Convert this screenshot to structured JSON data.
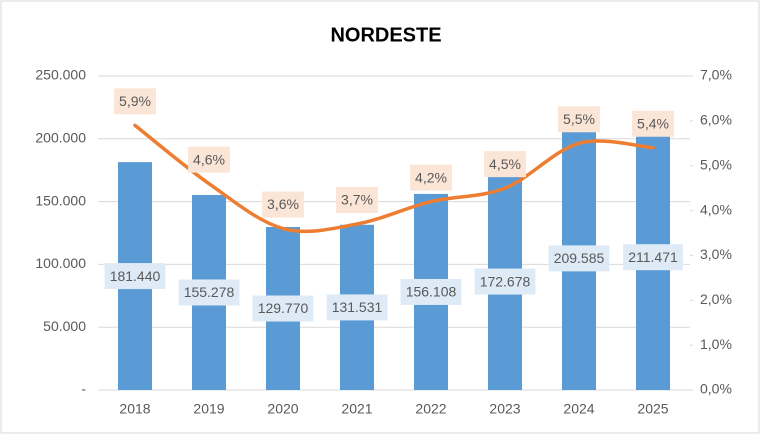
{
  "chart_data": {
    "type": "combo",
    "title": "NORDESTE",
    "categories": [
      "2018",
      "2019",
      "2020",
      "2021",
      "2022",
      "2023",
      "2024",
      "2025"
    ],
    "series": [
      {
        "type": "bar",
        "color": "#5b9bd5",
        "axis": "y",
        "values": [
          181440,
          155278,
          129770,
          131531,
          156108,
          172678,
          209585,
          211471
        ],
        "value_labels": [
          "181.440",
          "155.278",
          "129.770",
          "131.531",
          "156.108",
          "172.678",
          "209.585",
          "211.471"
        ]
      },
      {
        "type": "line",
        "color": "#ed7d31",
        "axis": "y2",
        "values": [
          5.9,
          4.6,
          3.6,
          3.7,
          4.2,
          4.5,
          5.5,
          5.4
        ],
        "value_labels": [
          "5,9%",
          "4,6%",
          "3,6%",
          "3,7%",
          "4,2%",
          "4,5%",
          "5,5%",
          "5,4%"
        ]
      }
    ],
    "ylim": [
      0,
      250000
    ],
    "yticks": [
      {
        "value": 0,
        "label": "-"
      },
      {
        "value": 50000,
        "label": "50.000"
      },
      {
        "value": 100000,
        "label": "100.000"
      },
      {
        "value": 150000,
        "label": "150.000"
      },
      {
        "value": 200000,
        "label": "200.000"
      },
      {
        "value": 250000,
        "label": "250.000"
      }
    ],
    "y2lim": [
      0,
      7
    ],
    "y2ticks": [
      {
        "value": 0,
        "label": "0,0%"
      },
      {
        "value": 1,
        "label": "1,0%"
      },
      {
        "value": 2,
        "label": "2,0%"
      },
      {
        "value": 3,
        "label": "3,0%"
      },
      {
        "value": 4,
        "label": "4,0%"
      },
      {
        "value": 5,
        "label": "5,0%"
      },
      {
        "value": 6,
        "label": "6,0%"
      },
      {
        "value": 7,
        "label": "7,0%"
      }
    ],
    "grid": true
  }
}
